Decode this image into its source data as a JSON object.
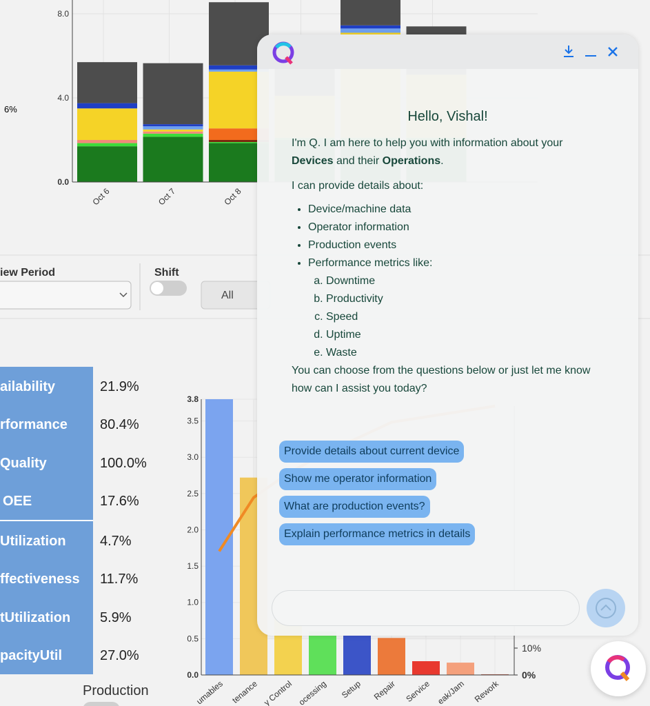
{
  "left_note": "6%",
  "stacked_chart": {
    "type": "bar",
    "stacked": true,
    "categories": [
      "Oct 6",
      "Oct 7",
      "Oct 8",
      null,
      null,
      null
    ],
    "series": [
      {
        "color": "#1b7a1e",
        "values": [
          1.7,
          2.15,
          1.85,
          2.0,
          2.0,
          2.0
        ]
      },
      {
        "color": "#3ddc3a",
        "values": [
          0.15,
          0.15,
          0.05,
          0.1,
          0.1,
          0.1
        ]
      },
      {
        "color": "#7a2a10",
        "values": [
          0,
          0,
          0.1,
          0,
          0,
          0
        ]
      },
      {
        "color": "#f08a7a",
        "values": [
          0.15,
          0.1,
          0,
          0,
          0,
          0
        ]
      },
      {
        "color": "#f26b1d",
        "values": [
          0,
          0,
          0.55,
          0,
          0,
          0
        ]
      },
      {
        "color": "#f5d327",
        "values": [
          1.5,
          0.1,
          2.7,
          2.0,
          5.0,
          3.0
        ]
      },
      {
        "color": "#6ea0f0",
        "values": [
          0,
          0.15,
          0.1,
          0,
          0.2,
          0
        ]
      },
      {
        "color": "#1f3fc4",
        "values": [
          0.25,
          0.1,
          0.2,
          0,
          0.15,
          0
        ]
      },
      {
        "color": "#4d4d4d",
        "values": [
          1.95,
          2.9,
          3.0,
          2.0,
          1.5,
          2.3
        ]
      }
    ],
    "ylim": [
      0,
      8
    ],
    "yticks": [
      {
        "value": 0,
        "label": "0.0"
      },
      {
        "value": 4,
        "label": "4.0"
      },
      {
        "value": 8,
        "label": "8.0"
      }
    ],
    "grid": true
  },
  "filters": {
    "view_period_label": "iew Period",
    "shift_label": "Shift",
    "shift_button": "All"
  },
  "metrics": {
    "rows": [
      [
        "ailability",
        "21.9%"
      ],
      [
        "rformance",
        "80.4%"
      ],
      [
        "Quality",
        "100.0%"
      ],
      [
        "OEE",
        "17.6%"
      ],
      [
        "Utilization",
        "4.7%"
      ],
      [
        "ffectiveness",
        "11.7%"
      ],
      [
        "tUtilization",
        "5.9%"
      ],
      [
        "pacityUtil",
        "27.0%"
      ]
    ]
  },
  "production_label": "Production",
  "pareto_chart": {
    "type": "bar",
    "categories": [
      "umables",
      "tenance",
      "y Control",
      "ocessing",
      "Setup",
      "Repair",
      "Service",
      "eak/Jam",
      "Rework"
    ],
    "colors": [
      "#7ba4ef",
      "#f0c75a",
      "#f3d24f",
      "#5fe05a",
      "#3c55c8",
      "#ec7a3b",
      "#e8392f",
      "#f4a07c",
      "#c46a55"
    ],
    "values": [
      3.8,
      2.72,
      0.9,
      0.6,
      0.55,
      0.51,
      0.19,
      0.17,
      0.01
    ],
    "line": {
      "color": "#f08a24",
      "axis": "y2",
      "values": [
        46,
        66,
        75,
        82,
        88,
        94,
        96,
        98,
        100
      ]
    },
    "ylim": [
      0,
      3.8
    ],
    "yticks": [
      {
        "value": 0,
        "label": "0.0"
      },
      0.5,
      {
        "value": 1,
        "label": "1.0"
      },
      1.5,
      {
        "value": 2,
        "label": "2.0"
      },
      2.5,
      {
        "value": 3,
        "label": "3.0"
      },
      3.5,
      3.8
    ],
    "y2lim": [
      0,
      100
    ],
    "y2ticks": [
      {
        "value": 0,
        "label": "0%"
      },
      {
        "value": 10,
        "label": "10%"
      }
    ],
    "grid": true
  },
  "chat": {
    "greeting": "Hello, Vishal!",
    "intro": [
      "I'm Q. I am here to help you with information about your ",
      "Devices",
      " and their ",
      "Operations",
      "."
    ],
    "provide": "I can provide details about:",
    "topics": [
      "Device/machine data",
      "Operator information",
      "Production events",
      "Performance metrics like:"
    ],
    "metrics": [
      "Downtime",
      "Productivity",
      "Speed",
      "Uptime",
      "Waste"
    ],
    "closing": "You can choose from the questions below or just let me know how can I assist you today?",
    "suggestions": [
      "Provide details about current device",
      "Show me operator information",
      "What are production events?",
      "Explain performance metrics in details"
    ]
  }
}
